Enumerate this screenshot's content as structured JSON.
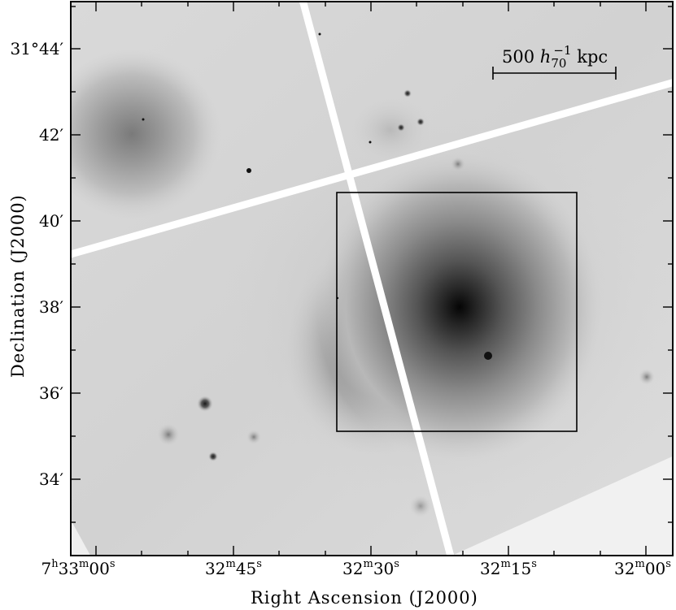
{
  "image": {
    "x_axis_label": "Right Ascension (J2000)",
    "y_axis_label": "Declination (J2000)",
    "y_ticks": [
      {
        "text": "31°44′"
      },
      {
        "text": "42′"
      },
      {
        "text": "40′"
      },
      {
        "text": "38′"
      },
      {
        "text": "36′"
      },
      {
        "text": "34′"
      }
    ],
    "x_ticks": [
      {
        "h": "7",
        "m": "33",
        "s": "00",
        "parts": [
          "7",
          "h",
          "33",
          "m",
          "00",
          "s"
        ]
      },
      {
        "parts": [
          "32",
          "m",
          "45",
          "s"
        ]
      },
      {
        "parts": [
          "32",
          "m",
          "30",
          "s"
        ]
      },
      {
        "parts": [
          "32",
          "m",
          "15",
          "s"
        ]
      },
      {
        "parts": [
          "32",
          "m",
          "00",
          "s"
        ]
      }
    ],
    "scale_bar": {
      "value": "500",
      "symbol": "h",
      "subscript": "70",
      "exponent": "−1",
      "unit": "kpc"
    }
  }
}
